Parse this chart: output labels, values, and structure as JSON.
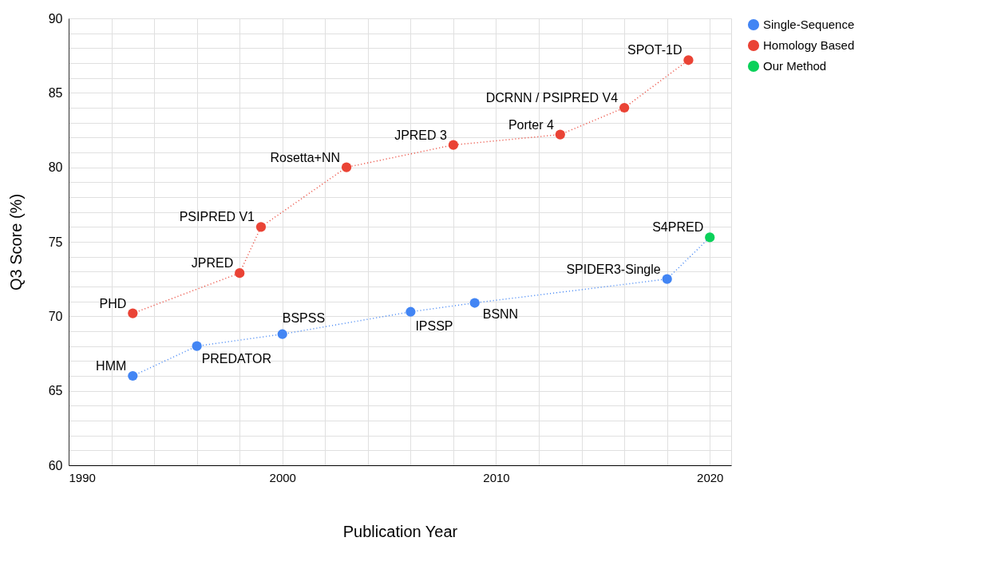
{
  "chart_data": {
    "type": "line",
    "xlabel": "Publication Year",
    "ylabel": "Q3 Score (%)",
    "series": [
      {
        "name": "Single-Sequence",
        "color": "#4285f4",
        "x": [
          1993,
          1996,
          2000,
          2006,
          2009,
          2018
        ],
        "values": [
          66.0,
          68.0,
          68.8,
          70.3,
          70.9,
          72.5
        ]
      },
      {
        "name": "Homology Based",
        "color": "#ea4335",
        "x": [
          1993,
          1998,
          1999,
          2003,
          2008,
          2013,
          2016,
          2019
        ],
        "values": [
          70.2,
          72.9,
          76.0,
          80.0,
          81.5,
          82.2,
          84.0,
          87.2
        ]
      },
      {
        "name": "Our Method",
        "color": "#0bd15a",
        "x": [
          2020
        ],
        "values": [
          75.3
        ]
      }
    ],
    "xlim": [
      1990,
      2021
    ],
    "xticks": [
      1990,
      {
        "value": 1992,
        "label": null
      },
      {
        "value": 1994,
        "label": null
      },
      {
        "value": 1996,
        "label": null
      },
      {
        "value": 1998,
        "label": null
      },
      2000,
      {
        "value": 2002,
        "label": null
      },
      {
        "value": 2004,
        "label": null
      },
      {
        "value": 2006,
        "label": null
      },
      {
        "value": 2008,
        "label": null
      },
      2010,
      {
        "value": 2012,
        "label": null
      },
      {
        "value": 2014,
        "label": null
      },
      {
        "value": 2016,
        "label": null
      },
      {
        "value": 2018,
        "label": null
      },
      2020
    ],
    "ylim": [
      60,
      90
    ],
    "yticks": [
      60,
      {
        "value": 61,
        "label": null
      },
      {
        "value": 62,
        "label": null
      },
      {
        "value": 63,
        "label": null
      },
      {
        "value": 64,
        "label": null
      },
      65,
      {
        "value": 66,
        "label": null
      },
      {
        "value": 67,
        "label": null
      },
      {
        "value": 68,
        "label": null
      },
      {
        "value": 69,
        "label": null
      },
      70,
      {
        "value": 71,
        "label": null
      },
      {
        "value": 72,
        "label": null
      },
      {
        "value": 73,
        "label": null
      },
      {
        "value": 74,
        "label": null
      },
      75,
      {
        "value": 76,
        "label": null
      },
      {
        "value": 77,
        "label": null
      },
      {
        "value": 78,
        "label": null
      },
      {
        "value": 79,
        "label": null
      },
      80,
      {
        "value": 81,
        "label": null
      },
      {
        "value": 82,
        "label": null
      },
      {
        "value": 83,
        "label": null
      },
      {
        "value": 84,
        "label": null
      },
      85,
      {
        "value": 86,
        "label": null
      },
      {
        "value": 87,
        "label": null
      },
      {
        "value": 88,
        "label": null
      },
      {
        "value": 89,
        "label": null
      },
      90
    ],
    "annotations": [
      {
        "text": "HMM",
        "x": 1993,
        "y": 66.0
      },
      {
        "text": "PHD",
        "x": 1993,
        "y": 70.2
      },
      {
        "text": "PREDATOR",
        "x": 1996,
        "y": 68.0
      },
      {
        "text": "JPRED",
        "x": 1998,
        "y": 72.9
      },
      {
        "text": "PSIPRED V1",
        "x": 1999,
        "y": 76.0
      },
      {
        "text": "BSPSS",
        "x": 2000,
        "y": 68.8
      },
      {
        "text": "Rosetta+NN",
        "x": 2003,
        "y": 80.0
      },
      {
        "text": "IPSSP",
        "x": 2006,
        "y": 70.3
      },
      {
        "text": "JPRED 3",
        "x": 2008,
        "y": 81.5
      },
      {
        "text": "BSNN",
        "x": 2009,
        "y": 70.9
      },
      {
        "text": "Porter 4",
        "x": 2013,
        "y": 82.2
      },
      {
        "text": "DCRNN / PSIPRED V4",
        "x": 2016,
        "y": 84.0
      },
      {
        "text": "SPIDER3-Single",
        "x": 2018,
        "y": 72.5
      },
      {
        "text": "SPOT-1D",
        "x": 2019,
        "y": 87.2
      },
      {
        "text": "S4PRED",
        "x": 2020,
        "y": 75.3
      }
    ],
    "grid": true,
    "legend": "top right",
    "marker": "circle",
    "line_style": "dotted"
  }
}
